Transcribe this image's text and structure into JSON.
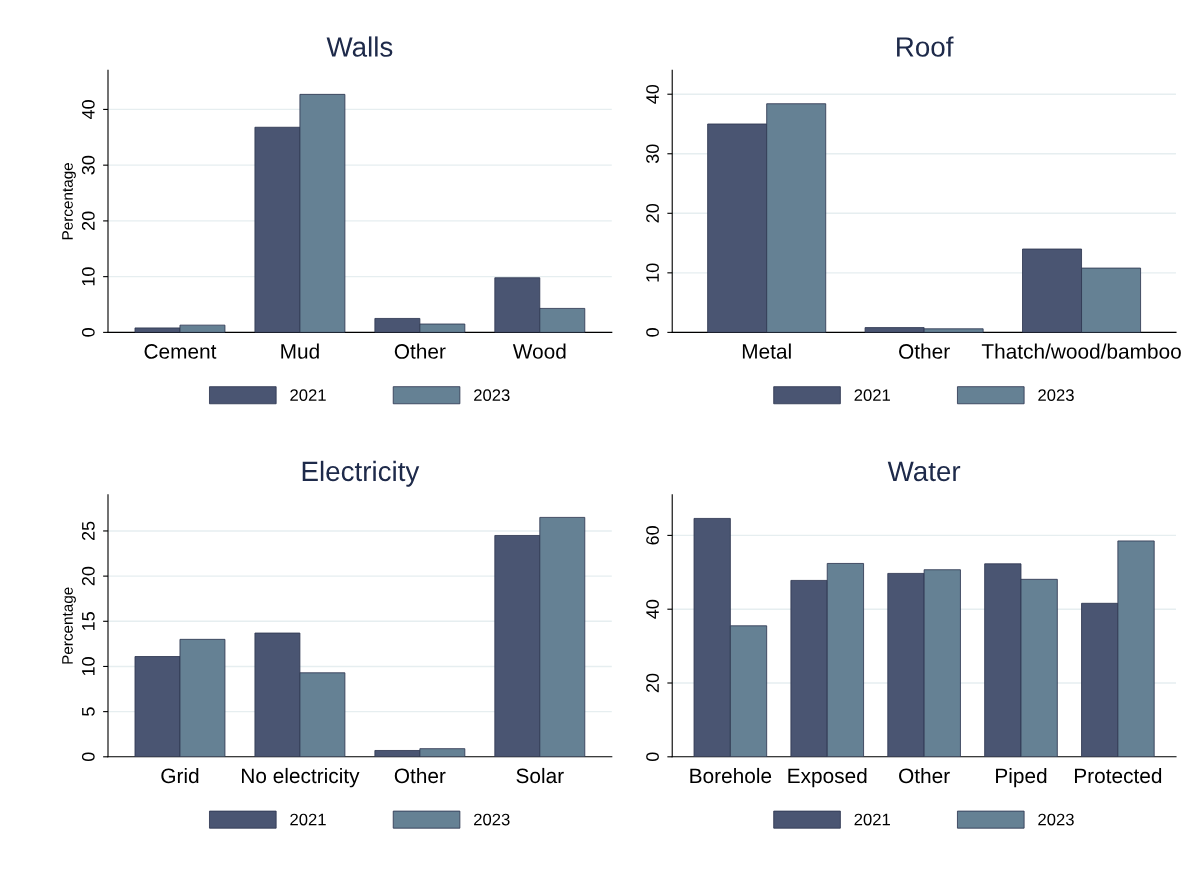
{
  "chart_data": [
    {
      "type": "bar",
      "title": "Walls",
      "ylabel": "Percentage",
      "categories": [
        "Cement",
        "Mud",
        "Other",
        "Wood"
      ],
      "ylim": [
        0,
        47
      ],
      "yticks": [
        0,
        10,
        20,
        30,
        40
      ],
      "grid": "y",
      "legend": "bottom",
      "series": [
        {
          "name": "2021",
          "color": "#4a5572",
          "values": [
            0.8,
            36.8,
            2.5,
            9.8
          ]
        },
        {
          "name": "2023",
          "color": "#658194",
          "values": [
            1.3,
            42.7,
            1.5,
            4.3
          ]
        }
      ]
    },
    {
      "type": "bar",
      "title": "Roof",
      "categories": [
        "Metal",
        "Other",
        "Thatch/wood/bamboo"
      ],
      "ylim": [
        0,
        44
      ],
      "yticks": [
        0,
        10,
        20,
        30,
        40
      ],
      "grid": "y",
      "legend": "bottom",
      "series": [
        {
          "name": "2021",
          "color": "#4a5572",
          "values": [
            35.0,
            0.8,
            14.0
          ]
        },
        {
          "name": "2023",
          "color": "#658194",
          "values": [
            38.4,
            0.6,
            10.8
          ]
        }
      ]
    },
    {
      "type": "bar",
      "title": "Electricity",
      "ylabel": "Percentage",
      "categories": [
        "Grid",
        "No electricity",
        "Other",
        "Solar"
      ],
      "ylim": [
        0,
        29
      ],
      "yticks": [
        0,
        5,
        10,
        15,
        20,
        25
      ],
      "grid": "y",
      "legend": "bottom",
      "series": [
        {
          "name": "2021",
          "color": "#4a5572",
          "values": [
            11.1,
            13.7,
            0.7,
            24.5
          ]
        },
        {
          "name": "2023",
          "color": "#658194",
          "values": [
            13.0,
            9.3,
            0.9,
            26.5
          ]
        }
      ]
    },
    {
      "type": "bar",
      "title": "Water",
      "categories": [
        "Borehole",
        "Exposed",
        "Other",
        "Piped",
        "Protected"
      ],
      "ylim": [
        0,
        71
      ],
      "yticks": [
        0,
        20,
        40,
        60
      ],
      "grid": "y",
      "legend": "bottom",
      "series": [
        {
          "name": "2021",
          "color": "#4a5572",
          "values": [
            64.6,
            47.8,
            49.7,
            52.3,
            41.6
          ]
        },
        {
          "name": "2023",
          "color": "#658194",
          "values": [
            35.5,
            52.4,
            50.7,
            48.1,
            58.5
          ]
        }
      ]
    }
  ]
}
